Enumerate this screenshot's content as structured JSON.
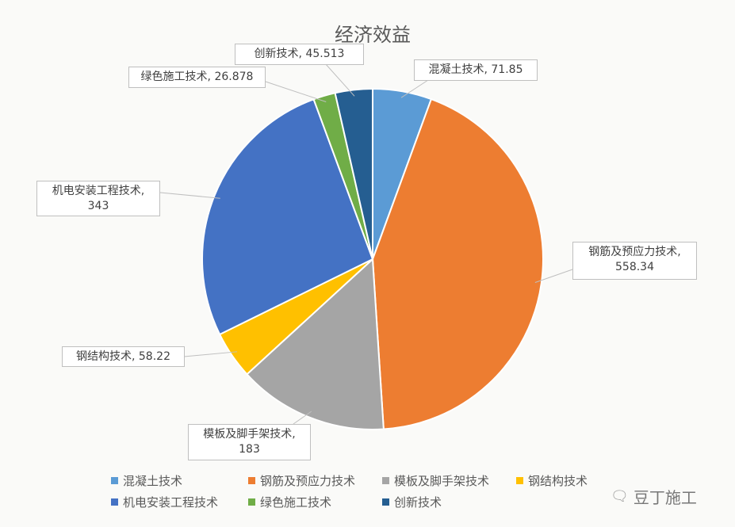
{
  "chart_data": {
    "type": "pie",
    "title": "经济效益",
    "categories": [
      "混凝土技术",
      "钢筋及预应力技术",
      "模板及脚手架技术",
      "钢结构技术",
      "机电安装工程技术",
      "绿色施工技术",
      "创新技术"
    ],
    "values": [
      71.85,
      558.34,
      183,
      58.22,
      343,
      26.878,
      45.513
    ],
    "data_labels": [
      "混凝土技术, 71.85",
      "钢筋及预应力技术, 558.34",
      "模板及脚手架技术, 183",
      "钢结构技术, 58.22",
      "机电安装工程技术, 343",
      "绿色施工技术, 26.878",
      "创新技术, 45.513"
    ],
    "colors": [
      "#5b9bd5",
      "#ed7d31",
      "#a5a5a5",
      "#ffc000",
      "#4472c4",
      "#70ad47",
      "#255e91"
    ],
    "legend_placement": "bottom"
  },
  "watermark": {
    "text": "豆丁施工",
    "icon": "wechat-icon"
  }
}
